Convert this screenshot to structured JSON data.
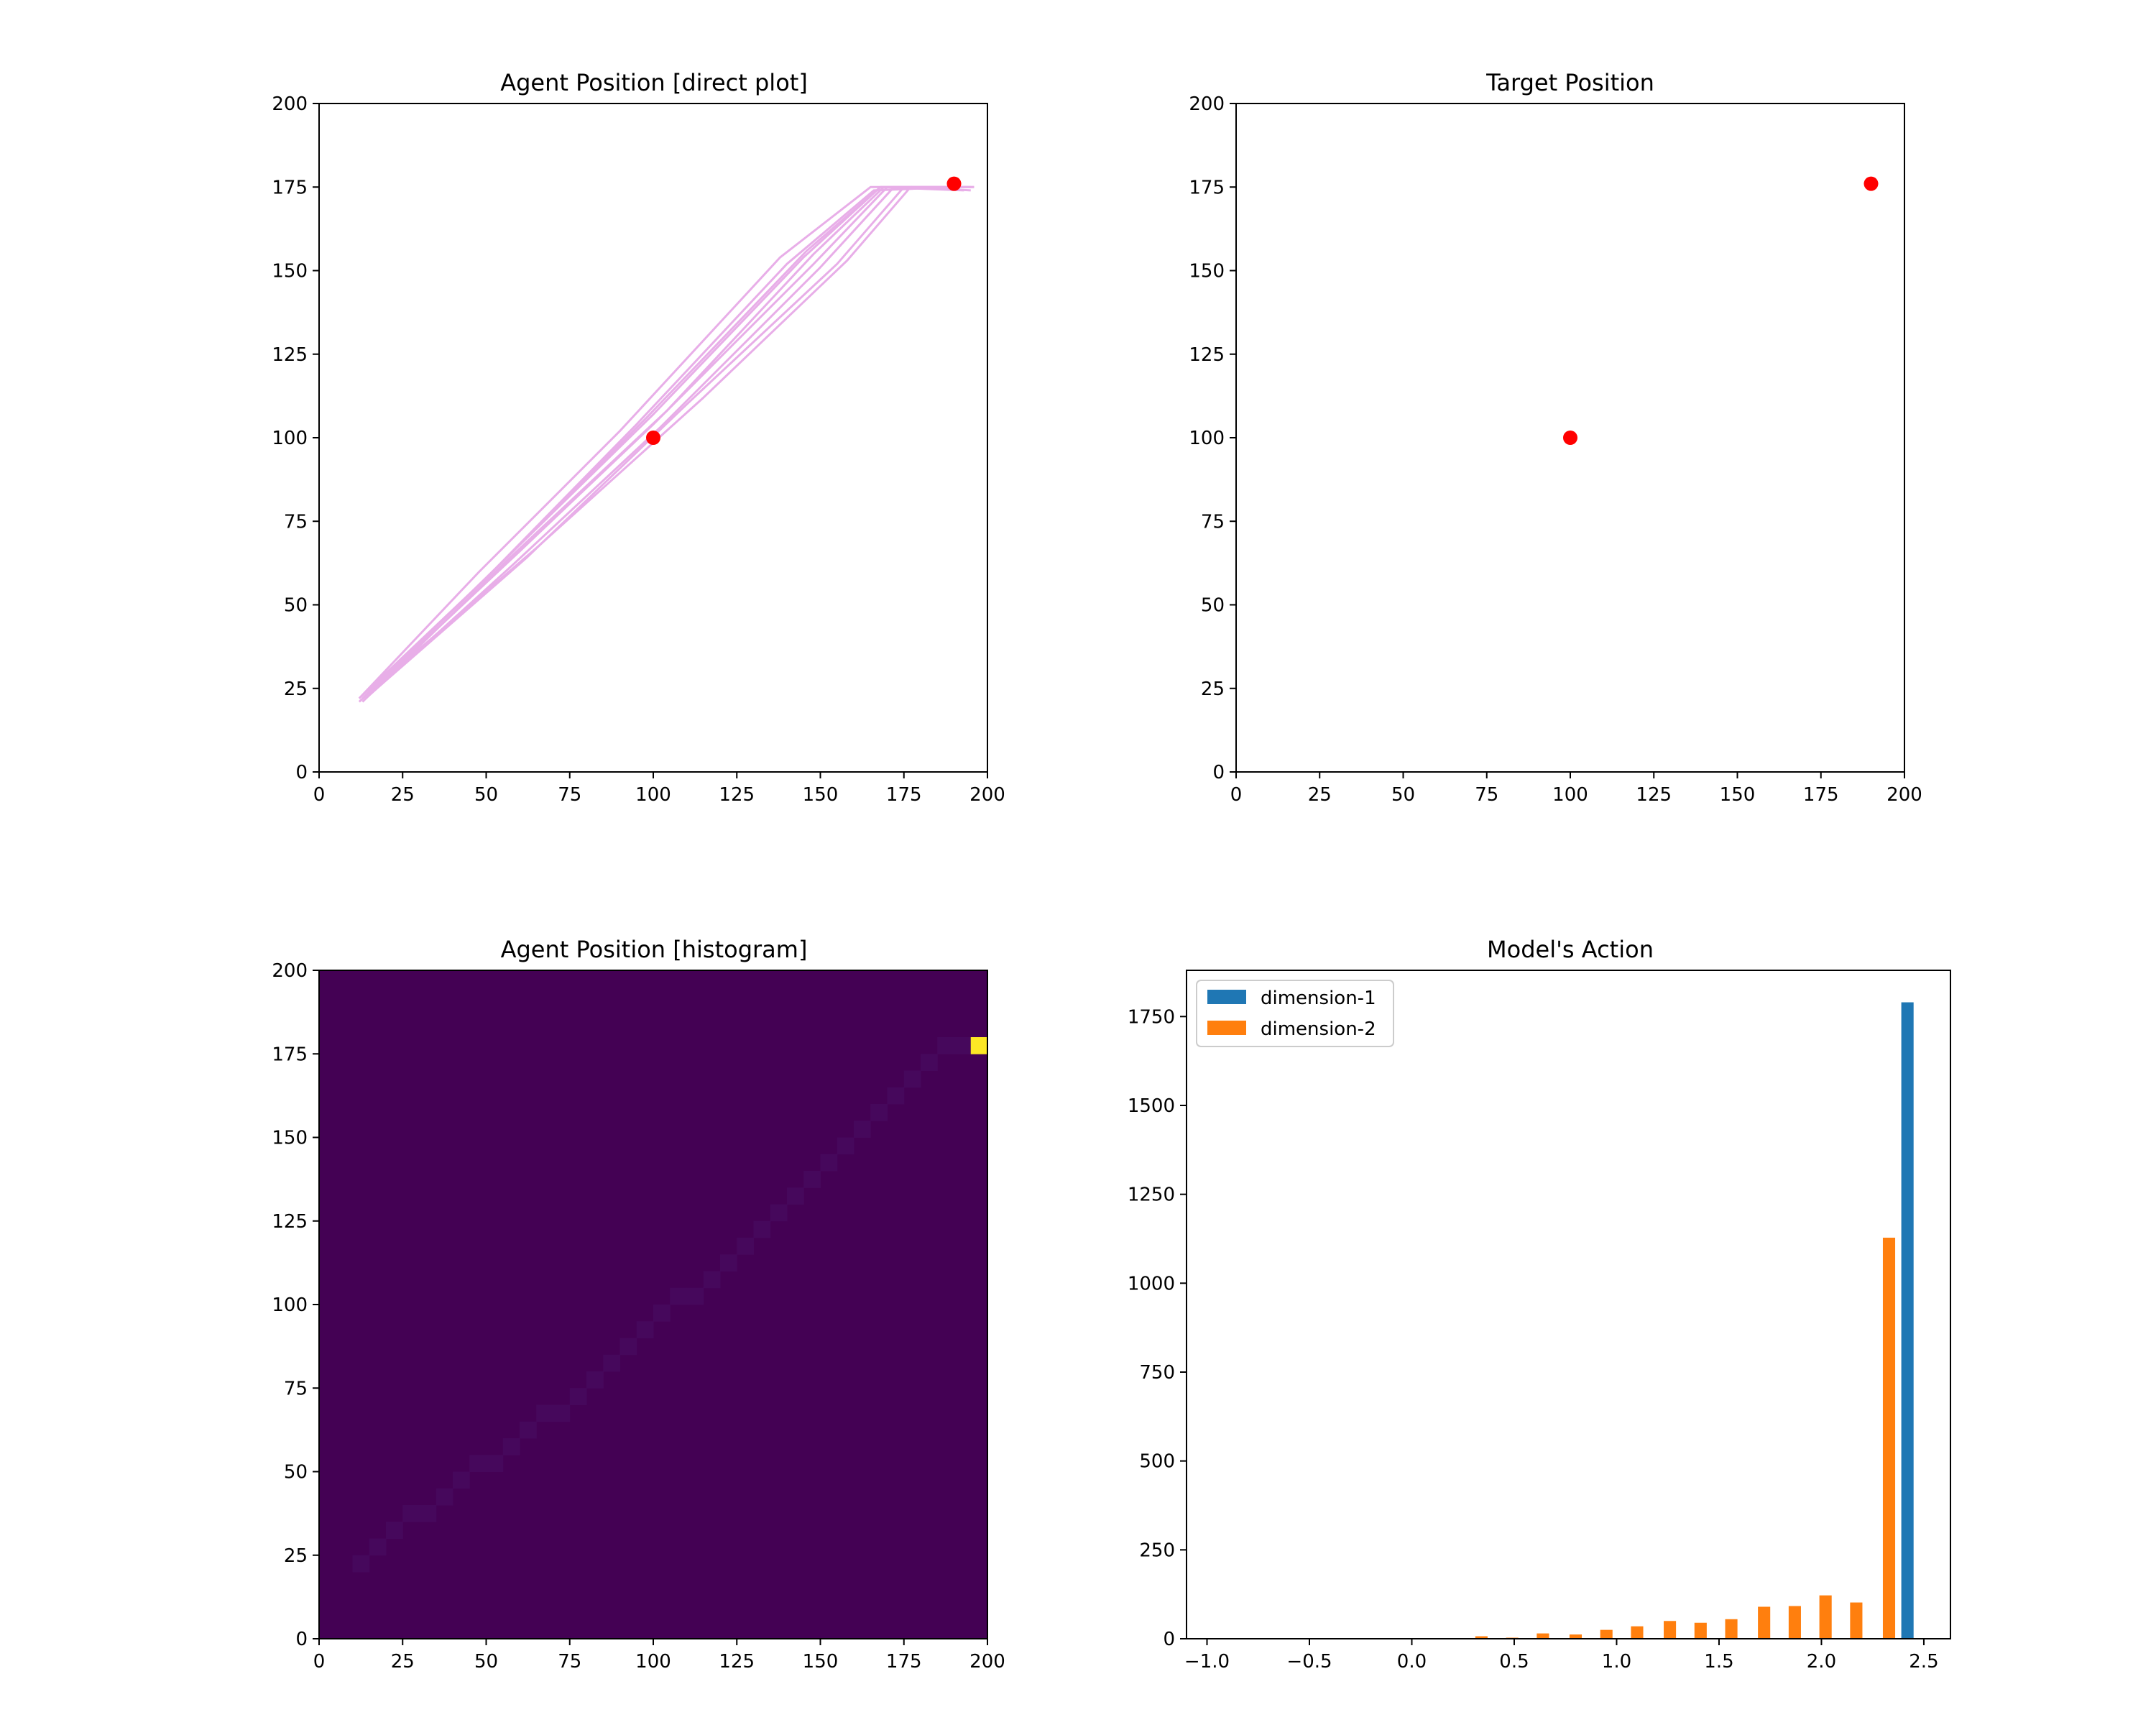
{
  "chart_data": [
    {
      "type": "line",
      "title": "Agent Position [direct plot]",
      "xlim": [
        0,
        200
      ],
      "ylim": [
        0,
        200
      ],
      "xticks": [
        "0",
        "25",
        "50",
        "75",
        "100",
        "125",
        "150",
        "175",
        "200"
      ],
      "yticks": [
        "0",
        "25",
        "50",
        "75",
        "100",
        "125",
        "150",
        "175",
        "200"
      ],
      "line_color": "#e8aee8",
      "series": [
        {
          "values": [
            [
              12,
              21
            ],
            [
              60,
              66
            ],
            [
              100,
              104
            ],
            [
              148,
              152
            ],
            [
              170,
              175
            ],
            [
              196,
              175
            ]
          ]
        },
        {
          "values": [
            [
              13,
              22
            ],
            [
              55,
              63
            ],
            [
              100,
              107
            ],
            [
              145,
              154
            ],
            [
              168,
              175
            ],
            [
              193,
              174
            ]
          ]
        },
        {
          "values": [
            [
              14,
              22
            ],
            [
              58,
              62
            ],
            [
              102,
              103
            ],
            [
              150,
              151
            ],
            [
              172,
              175
            ],
            [
              195,
              175
            ]
          ]
        },
        {
          "values": [
            [
              12,
              22
            ],
            [
              50,
              58
            ],
            [
              95,
              104
            ],
            [
              140,
              152
            ],
            [
              166,
              174
            ],
            [
              190,
              175
            ]
          ]
        },
        {
          "values": [
            [
              15,
              23
            ],
            [
              62,
              64
            ],
            [
              110,
              110
            ],
            [
              155,
              152
            ],
            [
              175,
              175
            ],
            [
              196,
              175
            ]
          ]
        },
        {
          "values": [
            [
              13,
              21
            ],
            [
              57,
              64
            ],
            [
              104,
              108
            ],
            [
              148,
              155
            ],
            [
              169,
              175
            ],
            [
              192,
              175
            ]
          ]
        },
        {
          "values": [
            [
              12,
              22
            ],
            [
              48,
              60
            ],
            [
              90,
              102
            ],
            [
              138,
              154
            ],
            [
              165,
              175
            ],
            [
              194,
              175
            ]
          ]
        },
        {
          "values": [
            [
              14,
              23
            ],
            [
              65,
              67
            ],
            [
              115,
              112
            ],
            [
              158,
              153
            ],
            [
              177,
              175
            ],
            [
              195,
              174
            ]
          ]
        },
        {
          "values": [
            [
              13,
              22
            ],
            [
              53,
              61
            ],
            [
              98,
              106
            ],
            [
              146,
              156
            ],
            [
              168,
              175
            ],
            [
              191,
              175
            ]
          ]
        }
      ],
      "markers": [
        [
          100,
          100
        ],
        [
          190,
          176
        ]
      ],
      "marker_color": "#ff0000"
    },
    {
      "type": "scatter",
      "title": "Target Position",
      "xlim": [
        0,
        200
      ],
      "ylim": [
        0,
        200
      ],
      "xticks": [
        "0",
        "25",
        "50",
        "75",
        "100",
        "125",
        "150",
        "175",
        "200"
      ],
      "yticks": [
        "0",
        "25",
        "50",
        "75",
        "100",
        "125",
        "150",
        "175",
        "200"
      ],
      "points": [
        [
          100,
          100
        ],
        [
          190,
          176
        ]
      ],
      "marker_color": "#ff0000"
    },
    {
      "type": "heatmap",
      "title": "Agent Position [histogram]",
      "xlim": [
        0,
        200
      ],
      "ylim": [
        0,
        200
      ],
      "xticks": [
        "0",
        "25",
        "50",
        "75",
        "100",
        "125",
        "150",
        "175",
        "200"
      ],
      "yticks": [
        "0",
        "25",
        "50",
        "75",
        "100",
        "125",
        "150",
        "175",
        "200"
      ],
      "bins": [
        40,
        40
      ],
      "background_color": "#440154",
      "trail_color": "#46085c",
      "peak_color": "#fde725",
      "trail_cells": [
        [
          2,
          4
        ],
        [
          3,
          5
        ],
        [
          4,
          6
        ],
        [
          5,
          7
        ],
        [
          6,
          7
        ],
        [
          7,
          8
        ],
        [
          8,
          9
        ],
        [
          9,
          10
        ],
        [
          10,
          10
        ],
        [
          11,
          11
        ],
        [
          12,
          12
        ],
        [
          13,
          13
        ],
        [
          14,
          13
        ],
        [
          15,
          14
        ],
        [
          16,
          15
        ],
        [
          17,
          16
        ],
        [
          18,
          17
        ],
        [
          19,
          18
        ],
        [
          20,
          19
        ],
        [
          21,
          20
        ],
        [
          22,
          20
        ],
        [
          23,
          21
        ],
        [
          24,
          22
        ],
        [
          25,
          23
        ],
        [
          26,
          24
        ],
        [
          27,
          25
        ],
        [
          28,
          26
        ],
        [
          29,
          27
        ],
        [
          30,
          28
        ],
        [
          31,
          29
        ],
        [
          32,
          30
        ],
        [
          33,
          31
        ],
        [
          34,
          32
        ],
        [
          35,
          33
        ],
        [
          36,
          34
        ],
        [
          37,
          35
        ],
        [
          38,
          35
        ]
      ],
      "peak_cells": [
        [
          39,
          35
        ]
      ]
    },
    {
      "type": "bar",
      "title": "Model's Action",
      "xlim": [
        -1.1,
        2.63
      ],
      "ylim": [
        0,
        1880
      ],
      "xticks": [
        "−1.0",
        "−0.5",
        "0.0",
        "0.5",
        "1.0",
        "1.5",
        "2.0",
        "2.5"
      ],
      "xtick_values": [
        -1.0,
        -0.5,
        0.0,
        0.5,
        1.0,
        1.5,
        2.0,
        2.5
      ],
      "yticks": [
        "0",
        "250",
        "500",
        "750",
        "1000",
        "1250",
        "1500",
        "1750"
      ],
      "ytick_values": [
        0,
        250,
        500,
        750,
        1000,
        1250,
        1500,
        1750
      ],
      "legend_position": "upper left",
      "bin_centers": [
        -0.92,
        -0.77,
        -0.61,
        -0.46,
        -0.31,
        -0.15,
        0.0,
        0.15,
        0.31,
        0.46,
        0.61,
        0.77,
        0.92,
        1.07,
        1.23,
        1.38,
        1.53,
        1.69,
        1.84,
        1.99,
        2.14,
        2.3,
        2.45
      ],
      "series": [
        {
          "name": "dimension-1",
          "color": "#1f77b4",
          "values": [
            0,
            0,
            0,
            0,
            0,
            0,
            0,
            0,
            0,
            0,
            0,
            0,
            0,
            0,
            0,
            0,
            0,
            0,
            0,
            0,
            0,
            0,
            1790
          ]
        },
        {
          "name": "dimension-2",
          "color": "#ff7f0e",
          "values": [
            0,
            0,
            0,
            0,
            0,
            0,
            0,
            0,
            7,
            3,
            15,
            12,
            25,
            35,
            50,
            45,
            55,
            90,
            92,
            122,
            102,
            1128,
            0
          ]
        }
      ]
    }
  ]
}
